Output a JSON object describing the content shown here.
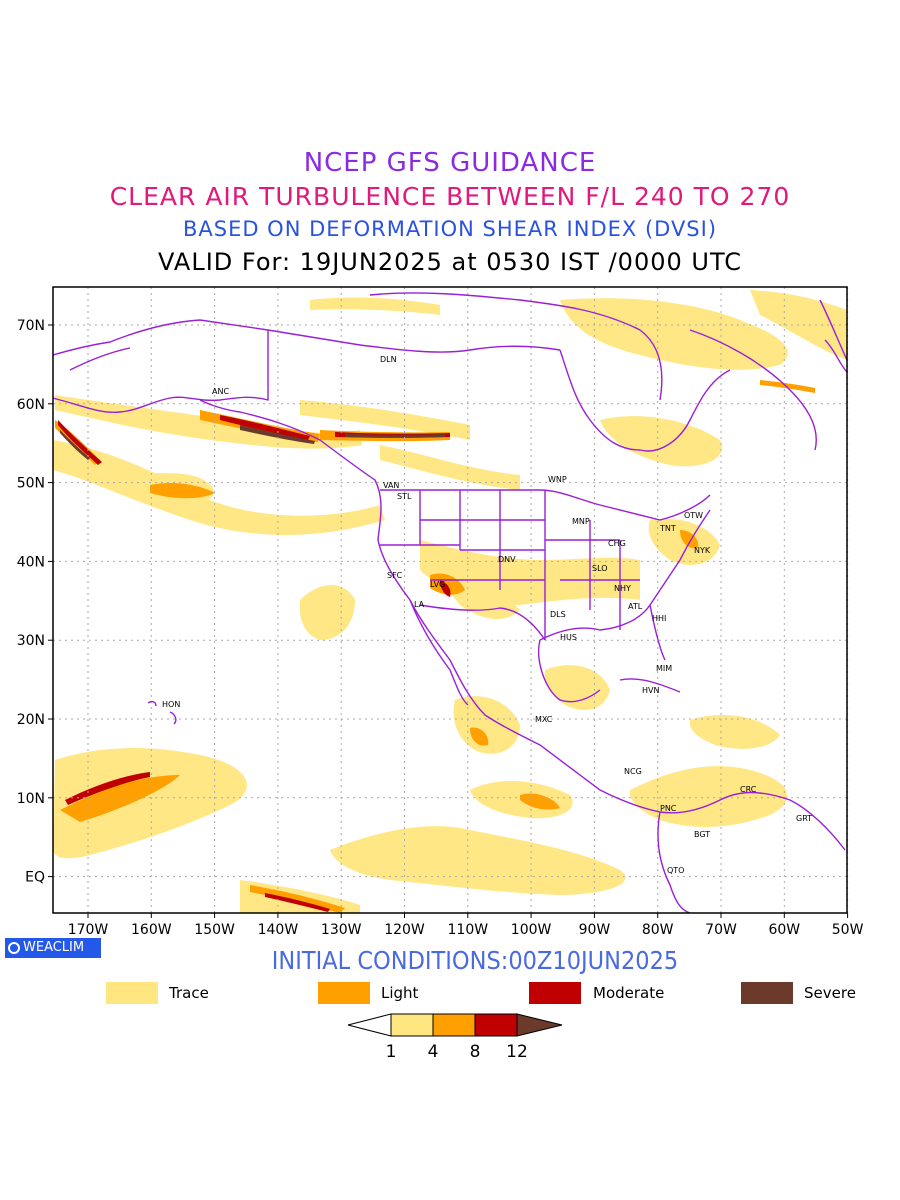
{
  "titles": {
    "line1": "NCEP GFS GUIDANCE",
    "line2": "CLEAR AIR TURBULENCE BETWEEN F/L 240 TO 270",
    "line3": "BASED ON DEFORMATION SHEAR INDEX (DVSI)",
    "line4": "VALID For: 19JUN2025 at 0530 IST /0000 UTC"
  },
  "initial_conditions": "INITIAL CONDITIONS:00Z10JUN2025",
  "logo_text": "WEACLIM",
  "map": {
    "lon_labels": [
      "170W",
      "160W",
      "150W",
      "140W",
      "130W",
      "120W",
      "110W",
      "100W",
      "90W",
      "80W",
      "70W",
      "60W",
      "50W"
    ],
    "lat_labels": [
      "70N",
      "60N",
      "50N",
      "40N",
      "30N",
      "20N",
      "10N",
      "EQ"
    ],
    "stations": [
      {
        "code": "DLN"
      },
      {
        "code": "ANC"
      },
      {
        "code": "VAN"
      },
      {
        "code": "STL"
      },
      {
        "code": "WNP"
      },
      {
        "code": "MNP"
      },
      {
        "code": "OTW"
      },
      {
        "code": "TNT"
      },
      {
        "code": "CHG"
      },
      {
        "code": "NYK"
      },
      {
        "code": "DNV"
      },
      {
        "code": "SFC"
      },
      {
        "code": "LVG"
      },
      {
        "code": "LA"
      },
      {
        "code": "SLO"
      },
      {
        "code": "NHY"
      },
      {
        "code": "ATL"
      },
      {
        "code": "DLS"
      },
      {
        "code": "HHI"
      },
      {
        "code": "HUS"
      },
      {
        "code": "MIM"
      },
      {
        "code": "HVN"
      },
      {
        "code": "HON"
      },
      {
        "code": "MXC"
      },
      {
        "code": "NCG"
      },
      {
        "code": "CRC"
      },
      {
        "code": "PNC"
      },
      {
        "code": "GRT"
      },
      {
        "code": "BGT"
      },
      {
        "code": "QTO"
      }
    ]
  },
  "legend": [
    {
      "label": "Trace",
      "color": "#ffe680"
    },
    {
      "label": "Light",
      "color": "#ffa000"
    },
    {
      "label": "Moderate",
      "color": "#c00000"
    },
    {
      "label": "Severe",
      "color": "#6b3a2a"
    }
  ],
  "colorbar": {
    "ticks": [
      "1",
      "4",
      "8",
      "12"
    ],
    "colors": [
      "#ffffff",
      "#ffe680",
      "#ffa000",
      "#c00000",
      "#6b3a2a"
    ]
  },
  "colors": {
    "coast": "#9a1fd6",
    "grid": "#aaaaaa",
    "trace": "#ffe680",
    "light": "#ffa000",
    "moderate": "#c00000",
    "severe": "#6b3a2a"
  }
}
